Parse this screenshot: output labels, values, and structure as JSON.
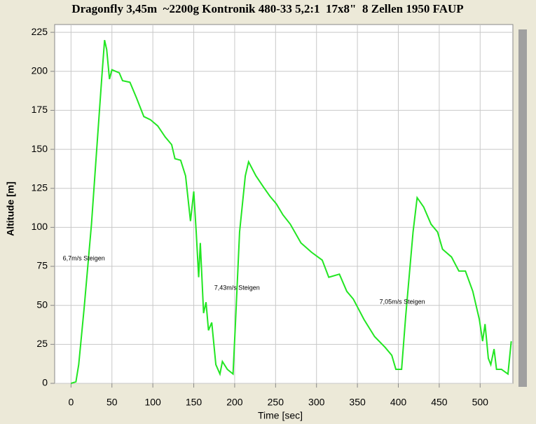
{
  "chart_data": {
    "type": "line",
    "title": "Dragonfly 3,45m  ~2200g Kontronik 480-33 5,2:1  17x8\"  8 Zellen 1950 FAUP",
    "xlabel": "Time [sec]",
    "ylabel": "Altitude [m]",
    "x": [
      0,
      6,
      9.4,
      16,
      25,
      31,
      37.6,
      41,
      43.6,
      47,
      50,
      59,
      63,
      72,
      80,
      89,
      97,
      106,
      115,
      123,
      127,
      134,
      140,
      146,
      150,
      153,
      156,
      158,
      162,
      165,
      168,
      172,
      177,
      182,
      185,
      191,
      198,
      201,
      206,
      213,
      217,
      226,
      235,
      243,
      251,
      259,
      268,
      281,
      294,
      307,
      315,
      328,
      337,
      345,
      358,
      371,
      384,
      392,
      397,
      404,
      409,
      418,
      423,
      431,
      440,
      448,
      454,
      465,
      474,
      482,
      491,
      499,
      503,
      506,
      510,
      513,
      517,
      520,
      526,
      534,
      538
    ],
    "values": [
      0,
      1,
      12,
      48,
      102,
      147,
      196,
      220,
      214,
      195,
      201,
      199,
      194,
      193,
      183,
      171,
      169,
      165,
      158,
      153,
      144,
      143,
      133,
      104,
      123,
      97,
      68,
      90,
      45,
      52,
      34,
      39,
      12,
      6,
      14,
      9,
      6,
      39,
      97,
      133,
      142,
      133,
      126,
      120,
      115,
      108,
      102,
      90,
      84,
      79,
      68,
      70,
      59,
      54,
      41,
      30,
      23,
      18,
      9,
      9,
      43,
      97,
      119,
      113,
      102,
      97,
      86,
      81,
      72,
      72,
      59,
      41,
      27,
      38,
      16,
      12,
      22,
      9,
      9,
      6,
      27
    ],
    "color": "#22e622",
    "annotations": [
      {
        "x": -10,
        "y": 80,
        "text": "6,7m/s Steigen"
      },
      {
        "x": 175,
        "y": 61,
        "text": "7,43m/s Steigen"
      },
      {
        "x": 377,
        "y": 52,
        "text": "7,05m/s Steigen"
      }
    ],
    "xlim": [
      -20,
      540
    ],
    "ylim": [
      0,
      230
    ],
    "xticks": [
      0,
      50,
      100,
      150,
      200,
      250,
      300,
      350,
      400,
      450,
      500
    ],
    "yticks": [
      0,
      25,
      50,
      75,
      100,
      125,
      150,
      175,
      200,
      225
    ],
    "grid": true
  }
}
